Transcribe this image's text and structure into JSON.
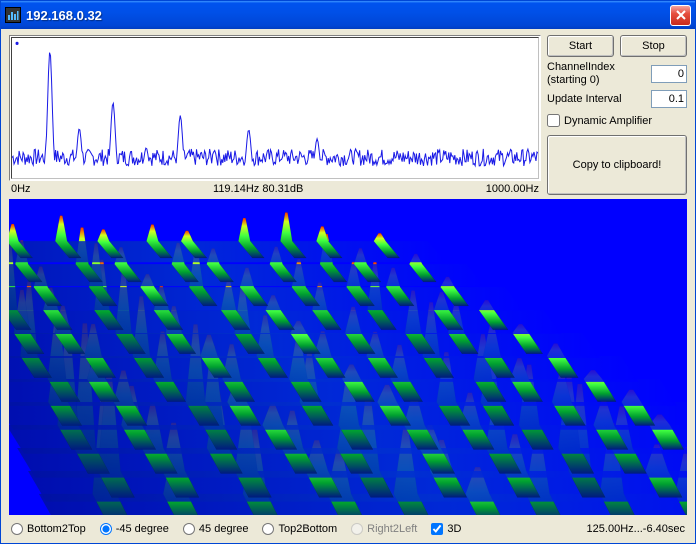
{
  "window": {
    "title": "192.168.0.32"
  },
  "buttons": {
    "start": "Start",
    "stop": "Stop",
    "copy": "Copy to clipboard!"
  },
  "fields": {
    "channel_label": "ChannelIndex (starting 0)",
    "channel_value": "0",
    "interval_label": "Update Interval",
    "interval_value": "0.1",
    "dynamp_label": "Dynamic Amplifier",
    "dynamp_checked": false
  },
  "spectrum": {
    "axis_left": "0Hz",
    "axis_center": "119.14Hz 80.31dB",
    "axis_right": "1000.00Hz",
    "line_color": "#1a1ae6",
    "bg": "#ffffff",
    "peaks_x": [
      0.072,
      0.128,
      0.192,
      0.255,
      0.32,
      0.385,
      0.45,
      0.515,
      0.58,
      0.645
    ],
    "peaks_h": [
      0.95,
      0.35,
      0.55,
      0.2,
      0.45,
      0.18,
      0.34,
      0.13,
      0.27,
      0.12
    ],
    "noise_floor": 0.12
  },
  "waterfall": {
    "bg": "#0000ff",
    "colors": {
      "low": "#001a80",
      "mid": "#00ff00",
      "high": "#ff3000"
    },
    "ridge_x": [
      0.1,
      0.18,
      0.27,
      0.36,
      0.45,
      0.54,
      0.63,
      0.72,
      0.81,
      0.9
    ],
    "ridge_h": [
      0.85,
      0.4,
      0.65,
      0.28,
      0.52,
      0.22,
      0.4,
      0.58,
      0.3,
      0.14
    ]
  },
  "view": {
    "options": [
      {
        "key": "b2t",
        "label": "Bottom2Top",
        "checked": false,
        "disabled": false
      },
      {
        "key": "m45",
        "label": "-45 degree",
        "checked": true,
        "disabled": false
      },
      {
        "key": "p45",
        "label": "45 degree",
        "checked": false,
        "disabled": false
      },
      {
        "key": "t2b",
        "label": "Top2Bottom",
        "checked": false,
        "disabled": false
      },
      {
        "key": "r2l",
        "label": "Right2Left",
        "checked": false,
        "disabled": true
      }
    ],
    "threed_label": "3D",
    "threed_checked": true,
    "status": "125.00Hz...-6.40sec"
  }
}
